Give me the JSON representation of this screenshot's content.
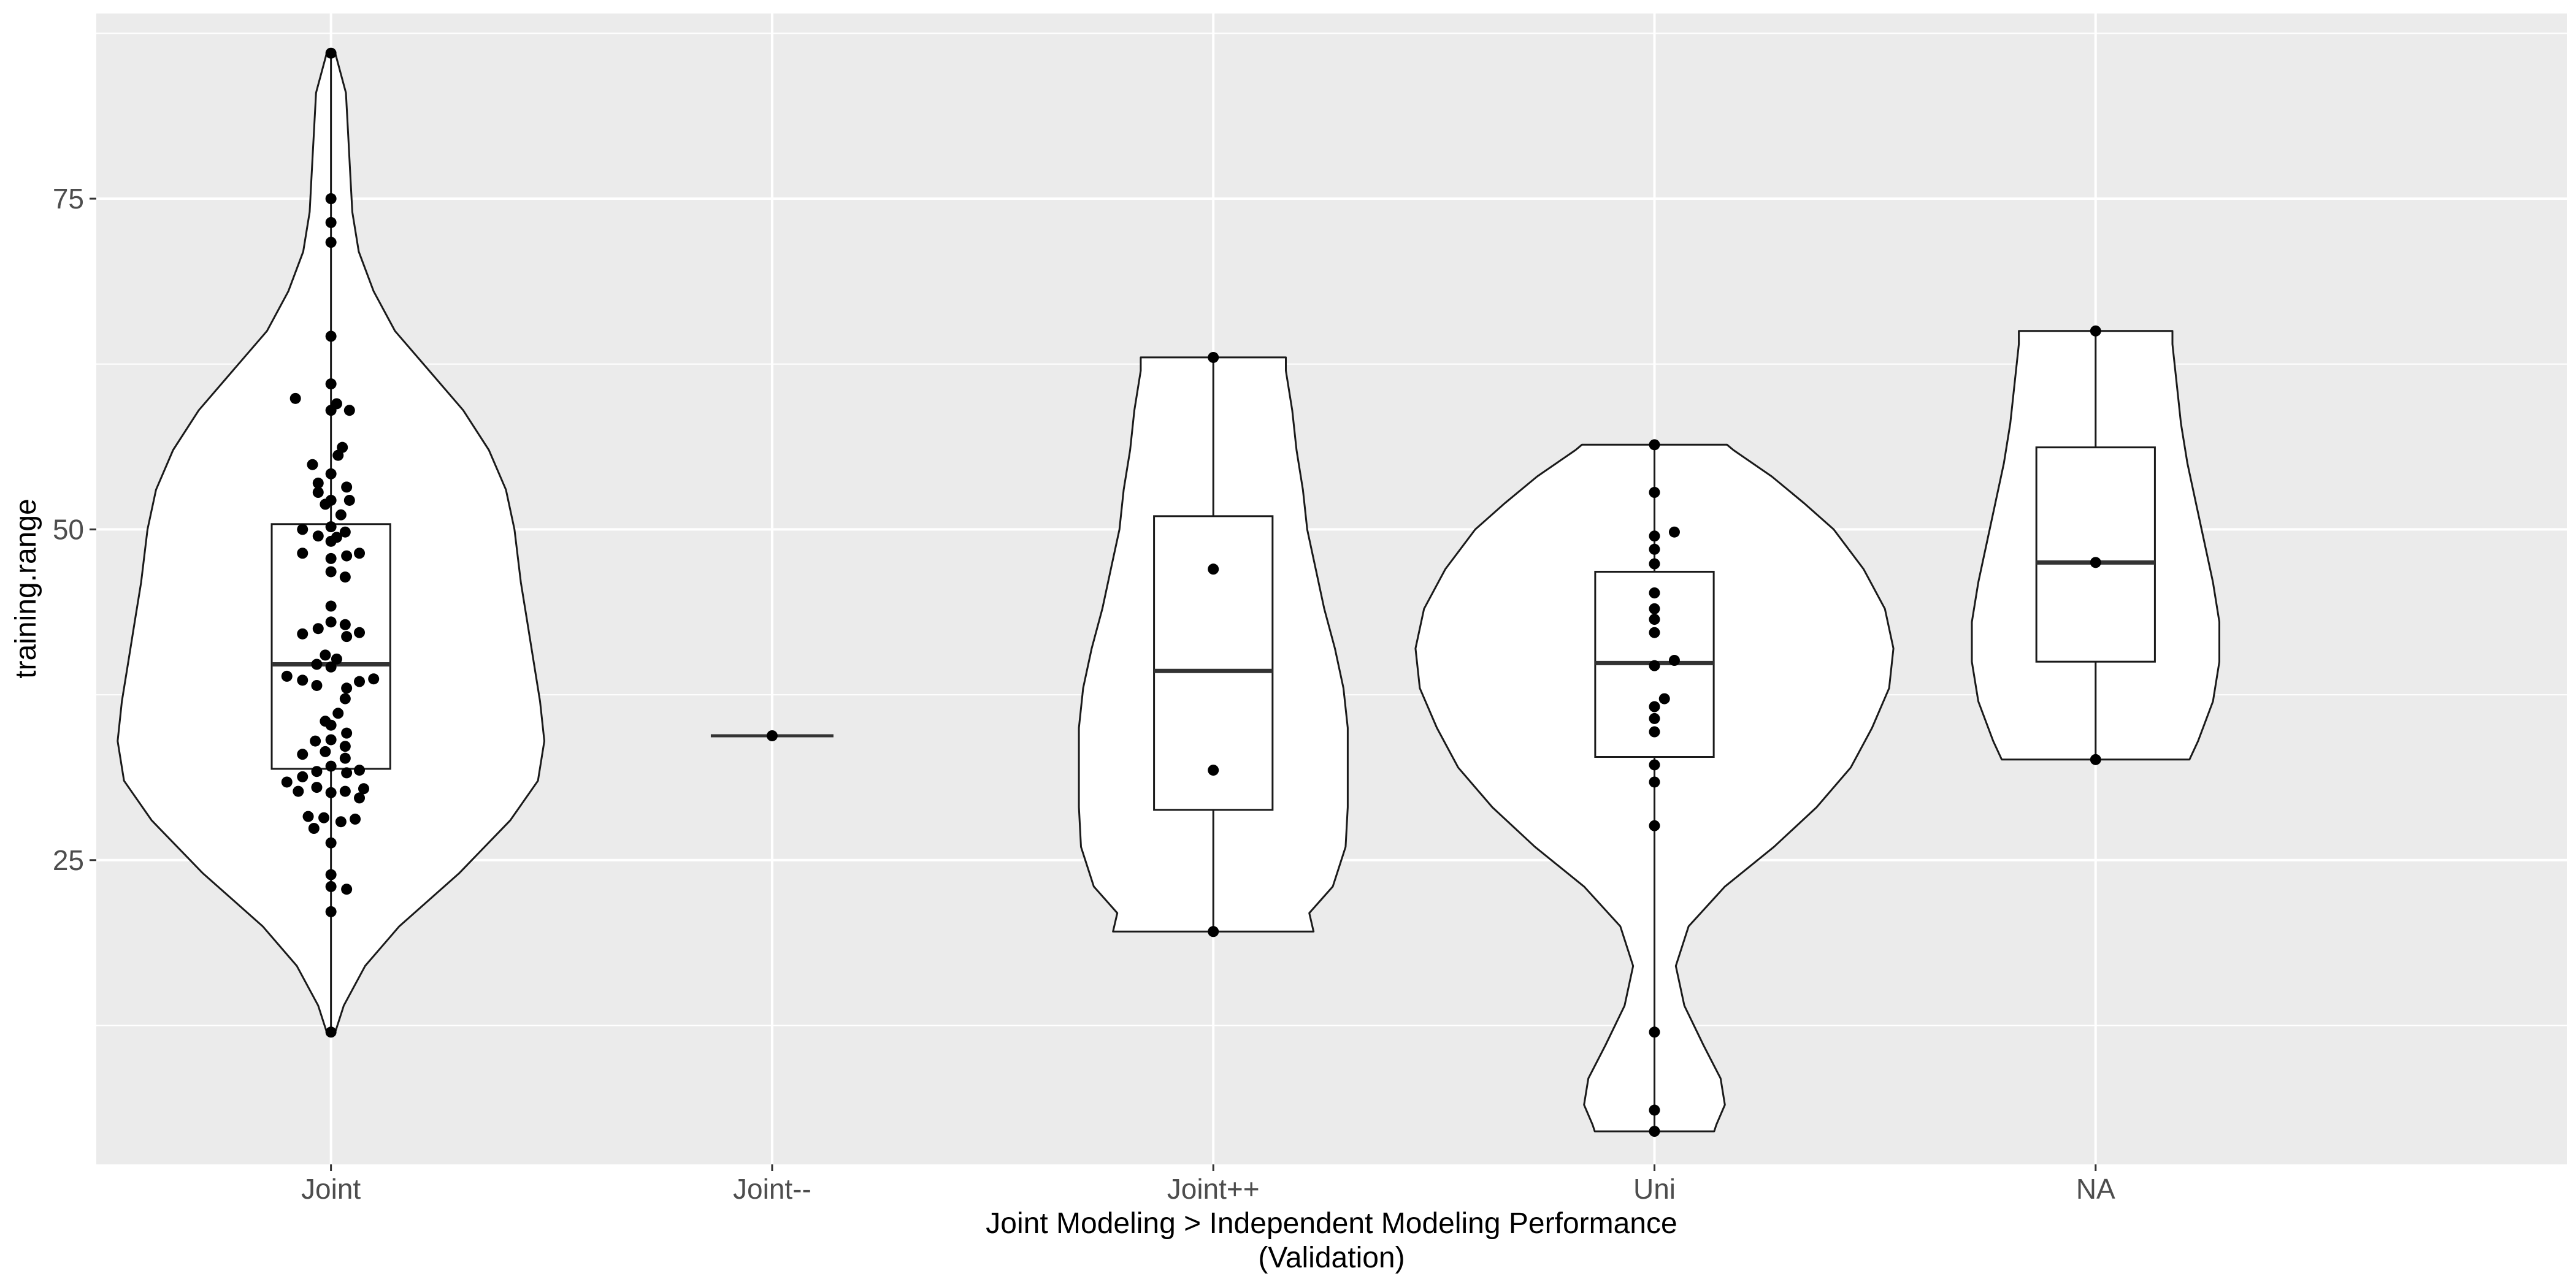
{
  "chart_data": {
    "type": "violin",
    "xlabel_lines": [
      "Joint Modeling > Independent Modeling Performance",
      "(Validation)"
    ],
    "ylabel": "training.range",
    "categories": [
      "Joint",
      "Joint--",
      "Joint++",
      "Uni",
      "NA"
    ],
    "ylim": [
      2,
      89
    ],
    "yticks": [
      25,
      50,
      75
    ],
    "grid": true,
    "background": "#ebebeb",
    "series": [
      {
        "category": "Joint",
        "min": 12.0,
        "q1": 31.9,
        "median": 39.8,
        "q3": 50.4,
        "max": 86.0,
        "violin_profile": [
          [
            12,
            0.02
          ],
          [
            14,
            0.06
          ],
          [
            17,
            0.16
          ],
          [
            20,
            0.32
          ],
          [
            24,
            0.6
          ],
          [
            28,
            0.84
          ],
          [
            31,
            0.97
          ],
          [
            34,
            1.0
          ],
          [
            37,
            0.98
          ],
          [
            40,
            0.95
          ],
          [
            43,
            0.92
          ],
          [
            46,
            0.89
          ],
          [
            50,
            0.86
          ],
          [
            53,
            0.82
          ],
          [
            56,
            0.74
          ],
          [
            59,
            0.62
          ],
          [
            62,
            0.46
          ],
          [
            65,
            0.3
          ],
          [
            68,
            0.2
          ],
          [
            71,
            0.13
          ],
          [
            74,
            0.1
          ],
          [
            77,
            0.09
          ],
          [
            80,
            0.08
          ],
          [
            83,
            0.07
          ],
          [
            86,
            0.02
          ]
        ],
        "points": [
          86.0,
          75.0,
          73.2,
          71.7,
          64.6,
          61.0,
          59.9,
          59.5,
          59.0,
          59.0,
          56.2,
          55.6,
          54.9,
          54.2,
          53.5,
          53.2,
          52.8,
          52.2,
          52.2,
          51.9,
          51.1,
          50.2,
          50.0,
          49.8,
          49.5,
          49.4,
          49.1,
          48.2,
          48.2,
          48.0,
          47.8,
          46.8,
          46.4,
          44.2,
          43.0,
          42.8,
          42.5,
          42.2,
          42.1,
          41.9,
          40.5,
          40.2,
          39.8,
          39.6,
          38.9,
          38.7,
          38.6,
          38.5,
          38.2,
          38.0,
          37.2,
          36.1,
          35.5,
          35.2,
          34.6,
          34.1,
          34.0,
          33.6,
          33.2,
          33.0,
          32.7,
          32.1,
          31.8,
          31.7,
          31.6,
          31.3,
          30.9,
          30.5,
          30.4,
          30.2,
          30.2,
          30.1,
          29.7,
          28.3,
          28.2,
          28.1,
          27.9,
          27.4,
          26.3,
          23.9,
          23.0,
          22.8,
          21.1,
          12.0
        ],
        "point_offsets": [
          0,
          0,
          0,
          0,
          0,
          0,
          -0.25,
          0.04,
          0.13,
          0,
          0.08,
          0.05,
          -0.13,
          0,
          -0.09,
          0.11,
          -0.09,
          0.13,
          0,
          -0.04,
          0.07,
          0,
          -0.2,
          0.1,
          -0.09,
          0.04,
          0,
          0.2,
          -0.2,
          0.11,
          0,
          0,
          0.1,
          0,
          0,
          0.1,
          -0.09,
          0.2,
          -0.2,
          0.11,
          -0.04,
          0.04,
          -0.1,
          0,
          -0.31,
          0.3,
          -0.2,
          0.2,
          -0.1,
          0.11,
          0.1,
          0.05,
          -0.04,
          0,
          0.11,
          0,
          -0.11,
          0.1,
          -0.04,
          -0.2,
          0.1,
          0,
          0.2,
          -0.1,
          0.11,
          -0.2,
          -0.31,
          -0.1,
          0.23,
          0.1,
          -0.23,
          0,
          0.2,
          -0.16,
          -0.05,
          0.17,
          0.07,
          -0.12,
          0,
          0,
          0,
          0.11,
          0,
          0
        ]
      },
      {
        "category": "Joint--",
        "min": 34.4,
        "q1": 34.4,
        "median": 34.4,
        "q3": 34.4,
        "max": 34.4,
        "violin_profile": [
          [
            34.4,
            1.0
          ]
        ],
        "points": [
          34.4
        ],
        "point_offsets": [
          0
        ]
      },
      {
        "category": "Joint++",
        "min": 19.6,
        "q1": 28.8,
        "median": 39.3,
        "q3": 51.0,
        "max": 63.0,
        "violin_profile": [
          [
            19.6,
            0.47
          ],
          [
            21,
            0.45
          ],
          [
            23,
            0.56
          ],
          [
            26,
            0.62
          ],
          [
            29,
            0.63
          ],
          [
            32,
            0.63
          ],
          [
            35,
            0.63
          ],
          [
            38,
            0.61
          ],
          [
            41,
            0.57
          ],
          [
            44,
            0.52
          ],
          [
            47,
            0.48
          ],
          [
            50,
            0.44
          ],
          [
            53,
            0.42
          ],
          [
            56,
            0.39
          ],
          [
            59,
            0.37
          ],
          [
            62,
            0.34
          ],
          [
            63,
            0.34
          ]
        ],
        "points": [
          63.0,
          47.0,
          31.8,
          19.6
        ],
        "point_offsets": [
          0,
          0,
          0,
          0
        ]
      },
      {
        "category": "Uni",
        "min": 4.5,
        "q1": 32.8,
        "median": 39.9,
        "q3": 46.8,
        "max": 56.4,
        "violin_profile": [
          [
            4.5,
            0.28
          ],
          [
            5,
            0.29
          ],
          [
            6.5,
            0.33
          ],
          [
            8.5,
            0.31
          ],
          [
            11,
            0.23
          ],
          [
            14,
            0.14
          ],
          [
            17,
            0.1
          ],
          [
            20,
            0.16
          ],
          [
            23,
            0.33
          ],
          [
            26,
            0.56
          ],
          [
            29,
            0.76
          ],
          [
            32,
            0.92
          ],
          [
            35,
            1.02
          ],
          [
            38,
            1.1
          ],
          [
            41,
            1.12
          ],
          [
            44,
            1.08
          ],
          [
            47,
            0.98
          ],
          [
            50,
            0.84
          ],
          [
            52,
            0.7
          ],
          [
            54,
            0.55
          ],
          [
            56,
            0.37
          ],
          [
            56.4,
            0.34
          ]
        ],
        "points": [
          56.4,
          52.8,
          49.8,
          49.5,
          48.5,
          47.4,
          45.2,
          44.0,
          43.2,
          42.2,
          40.1,
          39.7,
          37.2,
          36.6,
          35.7,
          34.7,
          32.2,
          30.9,
          27.6,
          12.0,
          6.1,
          4.5
        ],
        "point_offsets": [
          0,
          0,
          0.14,
          0,
          0,
          0,
          0,
          0,
          0,
          0,
          0.14,
          0,
          0.07,
          0,
          0,
          0,
          0,
          0,
          0,
          0,
          0,
          0
        ]
      },
      {
        "category": "NA",
        "min": 32.6,
        "q1": 40.0,
        "median": 47.5,
        "q3": 56.2,
        "max": 65.0,
        "violin_profile": [
          [
            32.6,
            0.44
          ],
          [
            34,
            0.48
          ],
          [
            37,
            0.55
          ],
          [
            40,
            0.58
          ],
          [
            43,
            0.58
          ],
          [
            46,
            0.55
          ],
          [
            49,
            0.51
          ],
          [
            52,
            0.47
          ],
          [
            55,
            0.43
          ],
          [
            58,
            0.4
          ],
          [
            61,
            0.38
          ],
          [
            64,
            0.36
          ],
          [
            65,
            0.36
          ]
        ],
        "points": [
          65.0,
          47.5,
          32.6
        ],
        "point_offsets": [
          0,
          0,
          0
        ]
      }
    ]
  }
}
